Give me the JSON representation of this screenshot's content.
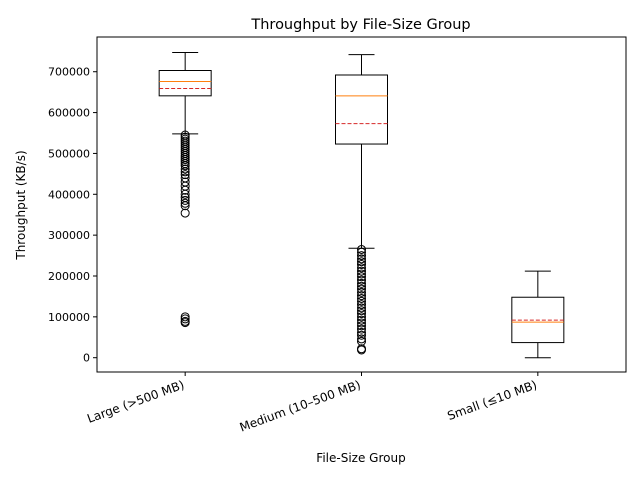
{
  "chart_data": {
    "type": "box",
    "title": "Throughput by File-Size Group",
    "xlabel": "File-Size Group",
    "ylabel": "Throughput (KB/s)",
    "ylim": [
      -35000,
      785000
    ],
    "yticks": [
      0,
      100000,
      200000,
      300000,
      400000,
      500000,
      600000,
      700000
    ],
    "ytick_labels": [
      "0",
      "100000",
      "200000",
      "300000",
      "400000",
      "500000",
      "600000",
      "700000"
    ],
    "categories": [
      "Large (>500 MB)",
      "Medium (10–500 MB)",
      "Small (≤10 MB)"
    ],
    "grid": false,
    "legend": "none",
    "colors": {
      "median": "#ff7f0e",
      "mean": "#d62728",
      "box": "#000000"
    },
    "boxes": [
      {
        "category": "Large (>500 MB)",
        "whisker_low": 548000,
        "q1": 641000,
        "median": 676000,
        "mean": 659000,
        "q3": 703000,
        "whisker_high": 747000,
        "outliers": [
          545000,
          540000,
          535000,
          530000,
          525000,
          520000,
          515000,
          510000,
          505000,
          500000,
          495000,
          490000,
          485000,
          480000,
          475000,
          470000,
          462000,
          455000,
          448000,
          440000,
          430000,
          420000,
          410000,
          400000,
          392000,
          385000,
          378000,
          372000,
          354000,
          100000,
          95000,
          89000,
          86000
        ]
      },
      {
        "category": "Medium (10–500 MB)",
        "whisker_low": 268000,
        "q1": 523000,
        "median": 641000,
        "mean": 573000,
        "q3": 692000,
        "whisker_high": 742000,
        "outliers": [
          265000,
          258000,
          250000,
          242000,
          235000,
          228000,
          220000,
          212000,
          205000,
          198000,
          190000,
          182000,
          175000,
          168000,
          160000,
          152000,
          145000,
          138000,
          130000,
          122000,
          115000,
          108000,
          100000,
          92000,
          85000,
          78000,
          70000,
          62000,
          55000,
          46000,
          40000,
          22000,
          19000
        ]
      },
      {
        "category": "Small (≤10 MB)",
        "whisker_low": 0,
        "q1": 37000,
        "median": 87000,
        "mean": 92000,
        "q3": 148000,
        "whisker_high": 212000,
        "outliers": []
      }
    ]
  }
}
